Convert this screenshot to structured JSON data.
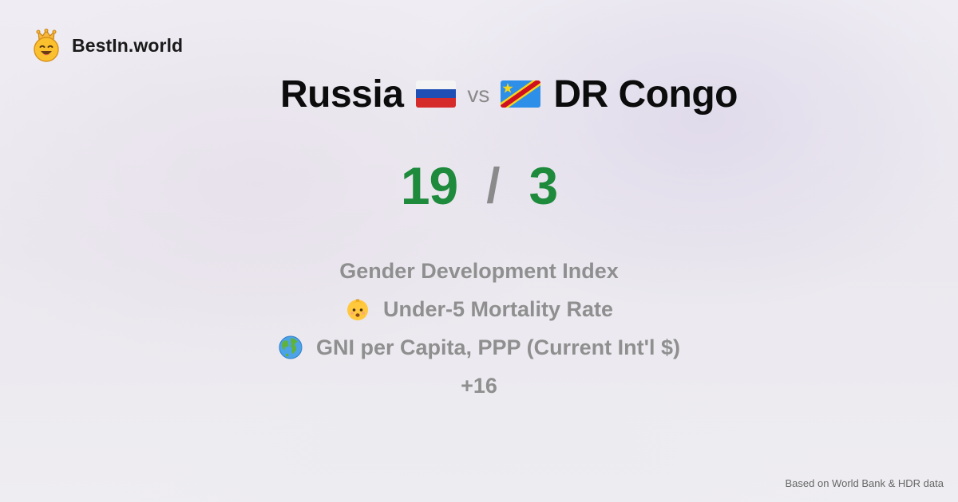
{
  "brand": {
    "name": "BestIn.world",
    "logo_icon": "crown-smiley-icon"
  },
  "comparison": {
    "left_country": "Russia",
    "left_flag": "russia-flag-icon",
    "vs_label": "vs",
    "right_country": "DR Congo",
    "right_flag": "dr-congo-flag-icon"
  },
  "score": {
    "left": "19",
    "separator": "/",
    "right": "3",
    "color": "#1e8a3c"
  },
  "metrics": [
    {
      "label": "Gender Development Index",
      "icon": null
    },
    {
      "label": "Under-5 Mortality Rate",
      "icon": "baby-icon"
    },
    {
      "label": "GNI per Capita, PPP (Current Int'l $)",
      "icon": "globe-icon"
    }
  ],
  "more_label": "+16",
  "footer": {
    "source": "Based on World Bank & HDR data"
  }
}
